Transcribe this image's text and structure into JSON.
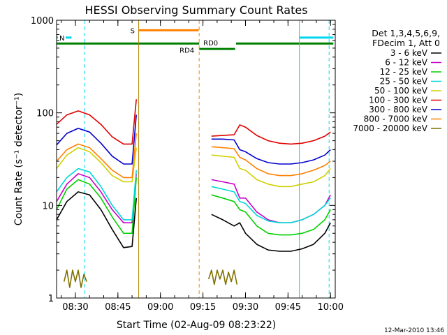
{
  "chart_data": {
    "type": "line",
    "title": "HESSI Observing Summary Count Rates",
    "xlabel": "Start Time (02-Aug-09 08:23:22)",
    "ylabel": "Count Rate (s⁻¹ detector⁻¹)",
    "y_scale": "log",
    "ylim": [
      1,
      1000
    ],
    "xlim": [
      "08:23:22",
      "10:01:40"
    ],
    "x_ticks": [
      "08:30",
      "08:45",
      "09:00",
      "09:15",
      "09:30",
      "09:45",
      "10:00"
    ],
    "y_ticks": [
      "1",
      "10",
      "100",
      "1000"
    ],
    "grid": false,
    "legend_placement": "right",
    "legend_header": [
      "Det 1,3,4,5,6,9,",
      "FDecim 1, Att 0"
    ],
    "footer_stamp": "12-Mar-2010 13:46",
    "series": [
      {
        "name": "3 - 6 keV",
        "color": "#000000",
        "segments": [
          {
            "x": [
              "08:23:22",
              "08:27",
              "08:31",
              "08:35",
              "08:39",
              "08:43",
              "08:47",
              "08:50",
              "08:51:30"
            ],
            "y": [
              7,
              11,
              14,
              13,
              9,
              5.5,
              3.5,
              3.6,
              12
            ]
          },
          {
            "x": [
              "09:18",
              "09:22",
              "09:26",
              "09:28",
              "09:30",
              "09:34",
              "09:38",
              "09:42",
              "09:46",
              "09:50",
              "09:54",
              "09:58",
              "10:00"
            ],
            "y": [
              8,
              7,
              6,
              6.5,
              5,
              3.8,
              3.3,
              3.2,
              3.2,
              3.4,
              3.8,
              5,
              6.5
            ]
          }
        ]
      },
      {
        "name": "6 - 12 keV",
        "color": "#c800c8",
        "segments": [
          {
            "x": [
              "08:23:22",
              "08:27",
              "08:31",
              "08:35",
              "08:39",
              "08:43",
              "08:47",
              "08:50",
              "08:51:30"
            ],
            "y": [
              11,
              17,
              22,
              20,
              14,
              9,
              6.5,
              6.5,
              22
            ]
          },
          {
            "x": [
              "09:18",
              "09:22",
              "09:26",
              "09:28",
              "09:30",
              "09:34",
              "09:38",
              "09:42",
              "09:46",
              "09:50",
              "09:54",
              "09:58",
              "10:00"
            ],
            "y": [
              19,
              18,
              17,
              12,
              12,
              8.5,
              7,
              6.5,
              6.5,
              7,
              8,
              10,
              13
            ]
          }
        ]
      },
      {
        "name": "12 - 25 keV",
        "color": "#00d000",
        "segments": [
          {
            "x": [
              "08:23:22",
              "08:27",
              "08:31",
              "08:35",
              "08:39",
              "08:43",
              "08:47",
              "08:50",
              "08:51:30"
            ],
            "y": [
              9,
              15,
              19,
              17,
              12,
              7.5,
              5,
              5,
              20
            ]
          },
          {
            "x": [
              "09:18",
              "09:22",
              "09:26",
              "09:28",
              "09:30",
              "09:34",
              "09:38",
              "09:42",
              "09:46",
              "09:50",
              "09:54",
              "09:58",
              "10:00"
            ],
            "y": [
              13,
              12,
              11,
              9,
              8.5,
              6,
              5,
              4.8,
              4.8,
              5,
              5.5,
              7,
              9
            ]
          }
        ]
      },
      {
        "name": "25 - 50 keV",
        "color": "#00d8d8",
        "segments": [
          {
            "x": [
              "08:23:22",
              "08:27",
              "08:31",
              "08:35",
              "08:39",
              "08:43",
              "08:47",
              "08:50",
              "08:51:30"
            ],
            "y": [
              14,
              20,
              25,
              23,
              16,
              10,
              7,
              7,
              24
            ]
          },
          {
            "x": [
              "09:18",
              "09:22",
              "09:26",
              "09:28",
              "09:30",
              "09:34",
              "09:38",
              "09:42",
              "09:46",
              "09:50",
              "09:54",
              "09:58",
              "10:00"
            ],
            "y": [
              16,
              15,
              14,
              11,
              10.5,
              7.8,
              6.8,
              6.5,
              6.5,
              7,
              8,
              10,
              12
            ]
          }
        ]
      },
      {
        "name": "50 - 100 keV",
        "color": "#d0d000",
        "segments": [
          {
            "x": [
              "08:23:22",
              "08:27",
              "08:31",
              "08:35",
              "08:39",
              "08:43",
              "08:47",
              "08:50",
              "08:51:30"
            ],
            "y": [
              25,
              35,
              42,
              38,
              29,
              21,
              18,
              18,
              42
            ]
          },
          {
            "x": [
              "09:18",
              "09:22",
              "09:26",
              "09:28",
              "09:30",
              "09:34",
              "09:38",
              "09:42",
              "09:46",
              "09:50",
              "09:54",
              "09:58",
              "10:00"
            ],
            "y": [
              35,
              34,
              33,
              25,
              24,
              19,
              17,
              16,
              16,
              17,
              18,
              21,
              25
            ]
          }
        ]
      },
      {
        "name": "100 - 300 keV",
        "color": "#e00000",
        "segments": [
          {
            "x": [
              "08:23:22",
              "08:27",
              "08:31",
              "08:35",
              "08:39",
              "08:43",
              "08:47",
              "08:50",
              "08:51:30"
            ],
            "y": [
              75,
              95,
              105,
              95,
              75,
              55,
              46,
              46,
              140
            ]
          },
          {
            "x": [
              "09:18",
              "09:22",
              "09:26",
              "09:28",
              "09:30",
              "09:34",
              "09:38",
              "09:42",
              "09:46",
              "09:50",
              "09:54",
              "09:58",
              "10:00"
            ],
            "y": [
              56,
              57,
              58,
              74,
              70,
              57,
              50,
              47,
              46,
              47,
              50,
              56,
              62
            ]
          }
        ]
      },
      {
        "name": "300 - 800 keV",
        "color": "#0000d0",
        "segments": [
          {
            "x": [
              "08:23:22",
              "08:27",
              "08:31",
              "08:35",
              "08:39",
              "08:43",
              "08:47",
              "08:50",
              "08:51:30"
            ],
            "y": [
              45,
              60,
              68,
              62,
              47,
              34,
              28,
              28,
              95
            ]
          },
          {
            "x": [
              "09:18",
              "09:22",
              "09:26",
              "09:28",
              "09:30",
              "09:34",
              "09:38",
              "09:42",
              "09:46",
              "09:50",
              "09:54",
              "09:58",
              "10:00"
            ],
            "y": [
              52,
              52,
              51,
              40,
              38,
              32,
              29,
              28,
              28,
              29,
              31,
              35,
              40
            ]
          }
        ]
      },
      {
        "name": "800 - 7000 keV",
        "color": "#ff8000",
        "segments": [
          {
            "x": [
              "08:23:22",
              "08:27",
              "08:31",
              "08:35",
              "08:39",
              "08:43",
              "08:47",
              "08:50",
              "08:51:30"
            ],
            "y": [
              30,
              40,
              46,
              42,
              32,
              24,
              20,
              20,
              60
            ]
          },
          {
            "x": [
              "09:18",
              "09:22",
              "09:26",
              "09:28",
              "09:30",
              "09:34",
              "09:38",
              "09:42",
              "09:46",
              "09:50",
              "09:54",
              "09:58",
              "10:00"
            ],
            "y": [
              43,
              42,
              41,
              33,
              31,
              25,
              22,
              21,
              21,
              22,
              24,
              27,
              30
            ]
          }
        ]
      },
      {
        "name": "7000 - 20000 keV",
        "color": "#807000",
        "segments": [
          {
            "x": [
              "08:26",
              "08:27",
              "08:28",
              "08:29",
              "08:30",
              "08:31",
              "08:32",
              "08:33",
              "08:34"
            ],
            "y": [
              1.5,
              2,
              1.3,
              2,
              1.5,
              2,
              1.3,
              1.8,
              1.5
            ]
          },
          {
            "x": [
              "09:17",
              "09:18",
              "09:19",
              "09:20",
              "09:21",
              "09:22",
              "09:23",
              "09:24",
              "09:25",
              "09:26",
              "09:27"
            ],
            "y": [
              1.6,
              2,
              1.4,
              2,
              1.6,
              2,
              1.4,
              1.9,
              1.5,
              2,
              1.4
            ]
          }
        ]
      }
    ],
    "annotations": [
      {
        "label": "N",
        "x_range": [
          "08:23:22",
          "08:28:40"
        ],
        "y": 650,
        "color": "#00d8f0"
      },
      {
        "label": "",
        "x_range": [
          "09:49:00",
          "10:01:00"
        ],
        "y": 650,
        "color": "#00d8f0"
      },
      {
        "label": "S",
        "x_range": [
          "08:52:20",
          "09:13:30"
        ],
        "y": 780,
        "color": "#ff8000"
      },
      {
        "label": "RD4",
        "x_range": [
          "08:23:22",
          "09:13:40"
        ],
        "y": 560,
        "color": "#008000"
      },
      {
        "label": "RD0",
        "x_range": [
          "09:13:40",
          "09:26:20"
        ],
        "y": 490,
        "color": "#008000"
      },
      {
        "label": "",
        "x_range": [
          "09:26:40",
          "10:01:00"
        ],
        "y": 560,
        "color": "#008000"
      }
    ],
    "vertical_markers": [
      {
        "x": "08:23:22",
        "color": "#00d8f0",
        "style": "solid"
      },
      {
        "x": "08:33:20",
        "color": "#00d8f0",
        "style": "dashed"
      },
      {
        "x": "08:52:20",
        "color": "#b08000",
        "style": "solid"
      },
      {
        "x": "09:13:40",
        "color": "#ff8000",
        "style": "dashed"
      },
      {
        "x": "09:49:00",
        "color": "#00d8f0",
        "style": "solid"
      },
      {
        "x": "09:59:30",
        "color": "#00d8f0",
        "style": "dashed"
      }
    ]
  }
}
